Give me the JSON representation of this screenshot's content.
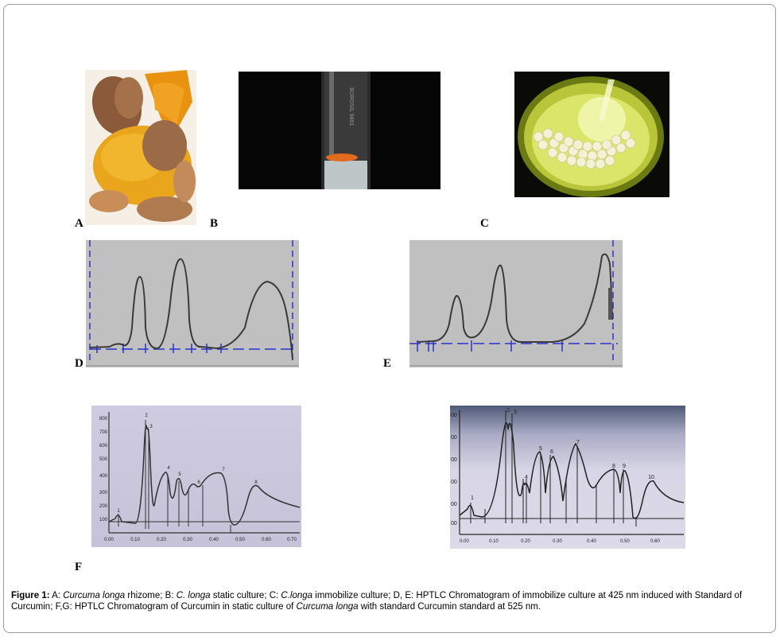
{
  "panel_labels": {
    "a": "A",
    "b": "B",
    "c": "C",
    "d": "D",
    "e": "E",
    "f": "F"
  },
  "caption": {
    "lead": "Figure 1:",
    "p1": " A: ",
    "i1": "Curcuma longa",
    "p2": " rhizome; B: ",
    "i2": "C. longa",
    "p3": " static culture; C: ",
    "i3": "C.longa",
    "p4": " immobilize culture; D, E: HPTLC Chromatogram of immobilize culture at 425 nm induced with Standard of Curcumin; F,G: HPTLC  Chromatogram of Curcumin in static culture of ",
    "i4": "Curcuma longa",
    "p5": " with standard Curcumin standard at 525 nm."
  },
  "chart_f": {
    "y_ticks": [
      "800",
      "700",
      "600",
      "500",
      "400",
      "300",
      "200",
      "100"
    ],
    "x_ticks": [
      "0.00",
      "0.10",
      "0.20",
      "0.30",
      "0.40",
      "0.50",
      "0.60",
      "0.70"
    ],
    "peak_labels": [
      "1",
      "2",
      "3",
      "4",
      "5",
      "6",
      "7",
      "8"
    ]
  },
  "chart_g": {
    "y_ticks": [
      "00",
      "00",
      "00",
      "00",
      "00",
      "00"
    ],
    "x_ticks": [
      "0.00",
      "0.10",
      "0.20",
      "0.30",
      "0.40",
      "0.50",
      "0.60"
    ],
    "peak_labels": [
      "1",
      "2",
      "3",
      "4",
      "5",
      "6",
      "7",
      "8",
      "9",
      "10"
    ]
  },
  "colors": {
    "chromatogram_bg": "#c0c0c0",
    "dash_line": "#2b33c8",
    "trace": "#3a3a3a",
    "scan_bg": "#cbc7dc",
    "turmeric": "#e9a51c"
  }
}
